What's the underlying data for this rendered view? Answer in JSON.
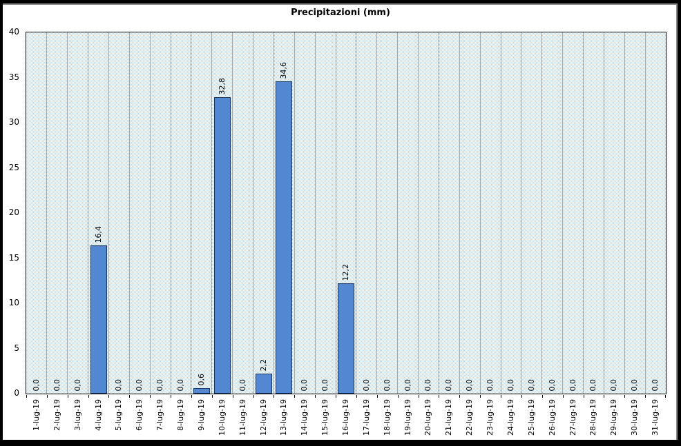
{
  "window": {
    "background": "#ffffff",
    "frame_color": "#000000"
  },
  "chart_data": {
    "type": "bar",
    "title": "Precipitazioni (mm)",
    "categories": [
      "1-lug-19",
      "2-lug-19",
      "3-lug-19",
      "4-lug-19",
      "5-lug-19",
      "6-lug-19",
      "7-lug-19",
      "8-lug-19",
      "9-lug-19",
      "10-lug-19",
      "11-lug-19",
      "12-lug-19",
      "13-lug-19",
      "14-lug-19",
      "15-lug-19",
      "16-lug-19",
      "17-lug-19",
      "18-lug-19",
      "19-lug-19",
      "20-lug-19",
      "21-lug-19",
      "22-lug-19",
      "23-lug-19",
      "24-lug-19",
      "25-lug-19",
      "26-lug-19",
      "27-lug-19",
      "28-lug-19",
      "29-lug-19",
      "30-lug-19",
      "31-lug-19"
    ],
    "values": [
      0,
      0,
      0,
      16.4,
      0,
      0,
      0,
      0,
      0.6,
      32.8,
      0,
      2.2,
      34.6,
      0,
      0,
      12.2,
      0,
      0,
      0,
      0,
      0,
      0,
      0,
      0,
      0,
      0,
      0,
      0,
      0,
      0,
      0
    ],
    "value_labels": [
      "0,0",
      "0,0",
      "0,0",
      "16,4",
      "0,0",
      "0,0",
      "0,0",
      "0,0",
      "0,6",
      "32,8",
      "0,0",
      "2,2",
      "34,6",
      "0,0",
      "0,0",
      "12,2",
      "0,0",
      "0,0",
      "0,0",
      "0,0",
      "0,0",
      "0,0",
      "0,0",
      "0,0",
      "0,0",
      "0,0",
      "0,0",
      "0,0",
      "0,0",
      "0,0",
      "0,0"
    ],
    "xlabel": "",
    "ylabel": "",
    "ylim": [
      0,
      40
    ],
    "yticks": [
      "0",
      "5",
      "10",
      "15",
      "20",
      "25",
      "30",
      "35",
      "40"
    ],
    "grid": "vertical-only",
    "legend": "none",
    "value_label_rotation": 90,
    "x_label_rotation": 90,
    "colors": {
      "bar_fill": "#5288d1",
      "bar_border": "#17365d",
      "gridline": "#a9a9a9",
      "plot_pattern": "#c8e0ea",
      "plot_border": "#000000",
      "text": "#000000"
    }
  }
}
